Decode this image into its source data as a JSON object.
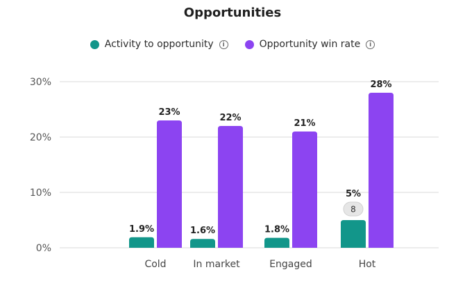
{
  "chart_data": {
    "type": "bar",
    "title": "Opportunities",
    "categories": [
      "Cold",
      "In market",
      "Engaged",
      "Hot"
    ],
    "series": [
      {
        "name": "Activity to opportunity",
        "color": "#12968a",
        "values": [
          1.9,
          1.6,
          1.8,
          5
        ],
        "labels": [
          "1.9%",
          "1.6%",
          "1.8%",
          "5%"
        ]
      },
      {
        "name": "Opportunity win rate",
        "color": "#8c44f1",
        "values": [
          23,
          22,
          21,
          28
        ],
        "labels": [
          "23%",
          "22%",
          "21%",
          "28%"
        ]
      }
    ],
    "ylim": [
      0,
      30
    ],
    "yticks": [
      0,
      10,
      20,
      30
    ],
    "ytick_labels": [
      "0%",
      "10%",
      "20%",
      "30%"
    ],
    "grid": true,
    "legend": "top-center",
    "annotations": [
      {
        "category": "Hot",
        "series": "Activity to opportunity",
        "badge": "8"
      }
    ]
  },
  "legend": {
    "info_icon": "info-icon"
  }
}
